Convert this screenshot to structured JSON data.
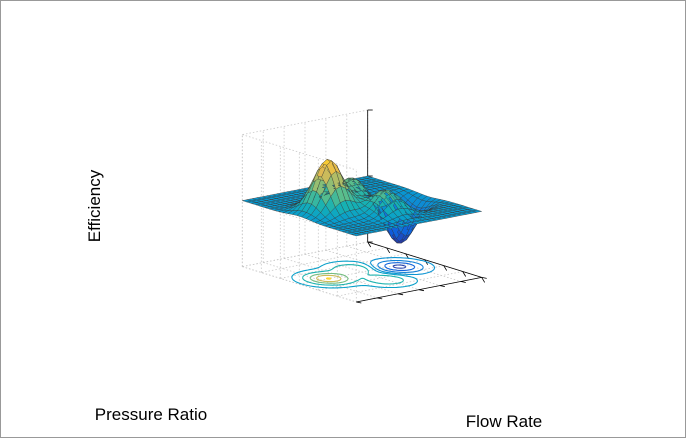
{
  "chart_data": {
    "type": "surface",
    "subtype": "3d-surface-with-contour",
    "title": "",
    "xlabel": "Flow Rate",
    "ylabel": "Pressure Ratio",
    "zlabel": "Efficiency",
    "x": [
      -3,
      3
    ],
    "y": [
      -3,
      3
    ],
    "zlim": [
      -10,
      10
    ],
    "grid": true,
    "colormap": "parula",
    "surface": {
      "grid_size": 25,
      "edge_color": "#333333",
      "peaks": [
        {
          "x": 0.0,
          "y": 1.6,
          "z": 8.1
        },
        {
          "x": -0.5,
          "y": 0.0,
          "z": 3.8
        },
        {
          "x": 1.3,
          "y": 0.0,
          "z": 3.6
        },
        {
          "x": 0.2,
          "y": -1.6,
          "z": -6.6
        }
      ]
    },
    "contour": {
      "levels": [
        -6,
        -4,
        -2,
        -0.5,
        0.5,
        2,
        4,
        6,
        8
      ],
      "projected_to": "floor"
    }
  }
}
